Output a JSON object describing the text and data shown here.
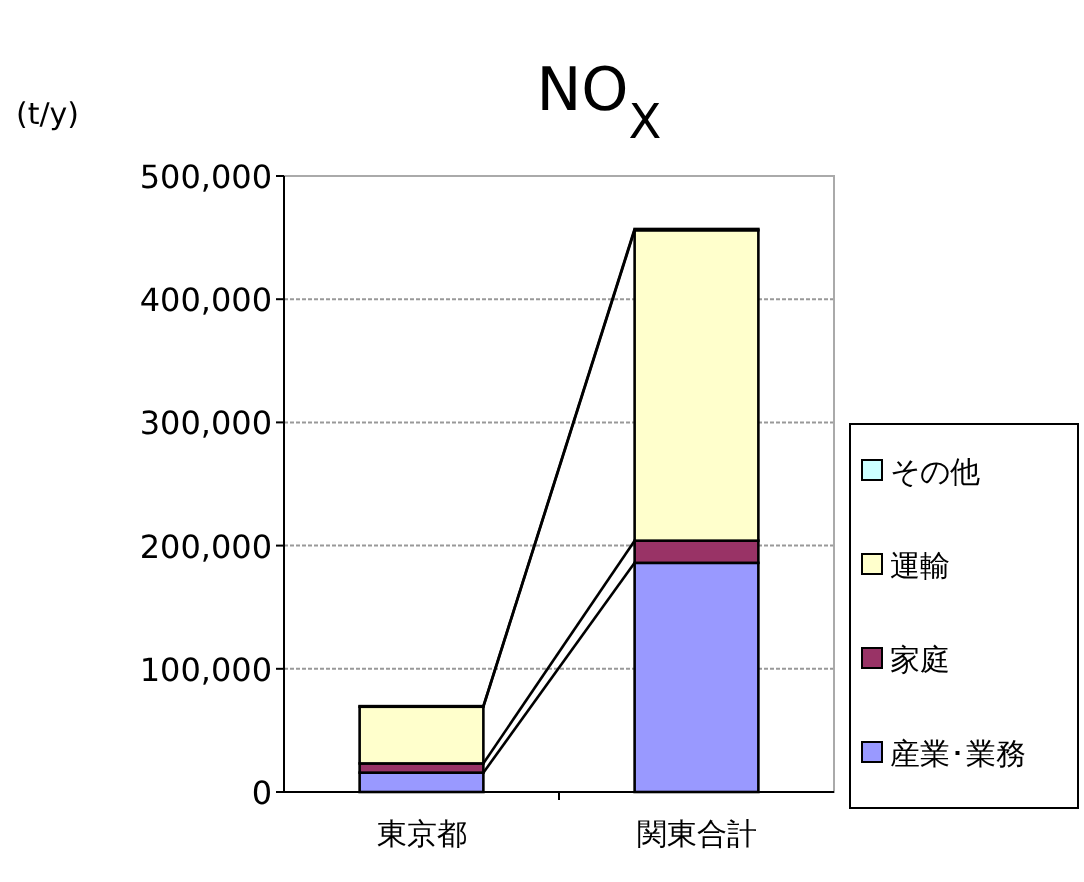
{
  "chart_data": {
    "type": "bar",
    "stacked": true,
    "title": "NO$_{X}$",
    "ylabel": "(t/y)",
    "categories": [
      "東京都",
      "関東合計"
    ],
    "series": [
      {
        "name": "産業･業務",
        "color": "#9999ff",
        "values": [
          15700,
          186000
        ]
      },
      {
        "name": "家庭",
        "color": "#993366",
        "values": [
          7500,
          18000
        ]
      },
      {
        "name": "運輸",
        "color": "#ffffcc",
        "values": [
          46000,
          252000
        ]
      },
      {
        "name": "その他",
        "color": "#ccffff",
        "values": [
          500,
          1000
        ]
      }
    ],
    "ylim": [
      0,
      500000
    ],
    "yticks": [
      0,
      {
        "value": 100000,
        "label": "100,000"
      },
      {
        "value": 200000,
        "label": "200,000"
      },
      {
        "value": 300000,
        "label": "300,000"
      },
      {
        "value": 400000,
        "label": "400,000"
      },
      {
        "value": 500000,
        "label": "500,000"
      }
    ],
    "grid": "y",
    "legend": "right"
  }
}
